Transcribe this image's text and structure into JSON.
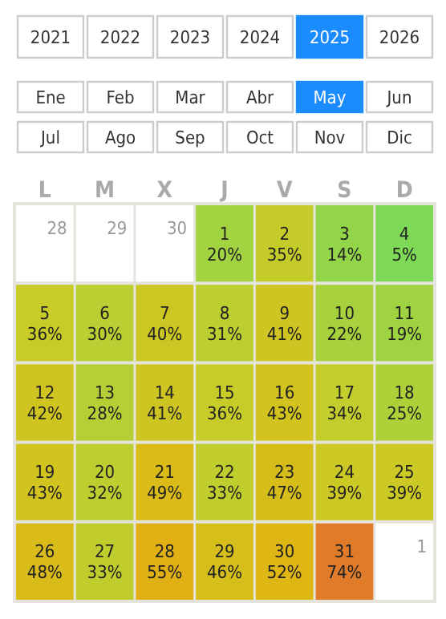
{
  "chart_data": {
    "type": "heatmap",
    "annotations": [
      "2021",
      "2022",
      "2023",
      "2024",
      "2025",
      "2026",
      "Ene",
      "Feb",
      "Mar",
      "Abr",
      "May",
      "Jun",
      "Jul",
      "Ago",
      "Sep",
      "Oct",
      "Nov",
      "Dic",
      "28",
      "29",
      "30",
      "1",
      "2",
      "3",
      "4",
      "5",
      "6",
      "7",
      "8",
      "9",
      "10",
      "11",
      "12",
      "13",
      "14",
      "15",
      "16",
      "17",
      "18",
      "19",
      "20",
      "21",
      "22",
      "23",
      "24",
      "25",
      "26",
      "27",
      "28",
      "29",
      "30",
      "31",
      "1"
    ],
    "categories": [
      "L",
      "M",
      "X",
      "J",
      "V",
      "S",
      "D"
    ],
    "y_categories": [
      null,
      null,
      null,
      null,
      null
    ],
    "cells": [
      [
        null,
        null,
        null,
        20,
        35,
        14,
        5
      ],
      [
        36,
        30,
        40,
        31,
        41,
        22,
        19
      ],
      [
        42,
        28,
        41,
        36,
        43,
        34,
        25
      ],
      [
        43,
        32,
        49,
        33,
        47,
        39,
        39
      ],
      [
        48,
        33,
        55,
        46,
        52,
        74,
        null
      ]
    ],
    "cell_labels": [
      [
        null,
        null,
        null,
        "20%",
        "35%",
        "14%",
        "5%"
      ],
      [
        "36%",
        "30%",
        "40%",
        "31%",
        "41%",
        "22%",
        "19%"
      ],
      [
        "42%",
        "28%",
        "41%",
        "36%",
        "43%",
        "34%",
        "25%"
      ],
      [
        "43%",
        "32%",
        "49%",
        "33%",
        "47%",
        "39%",
        "39%"
      ],
      [
        "48%",
        "33%",
        "55%",
        "46%",
        "52%",
        "74%",
        null
      ]
    ]
  }
}
